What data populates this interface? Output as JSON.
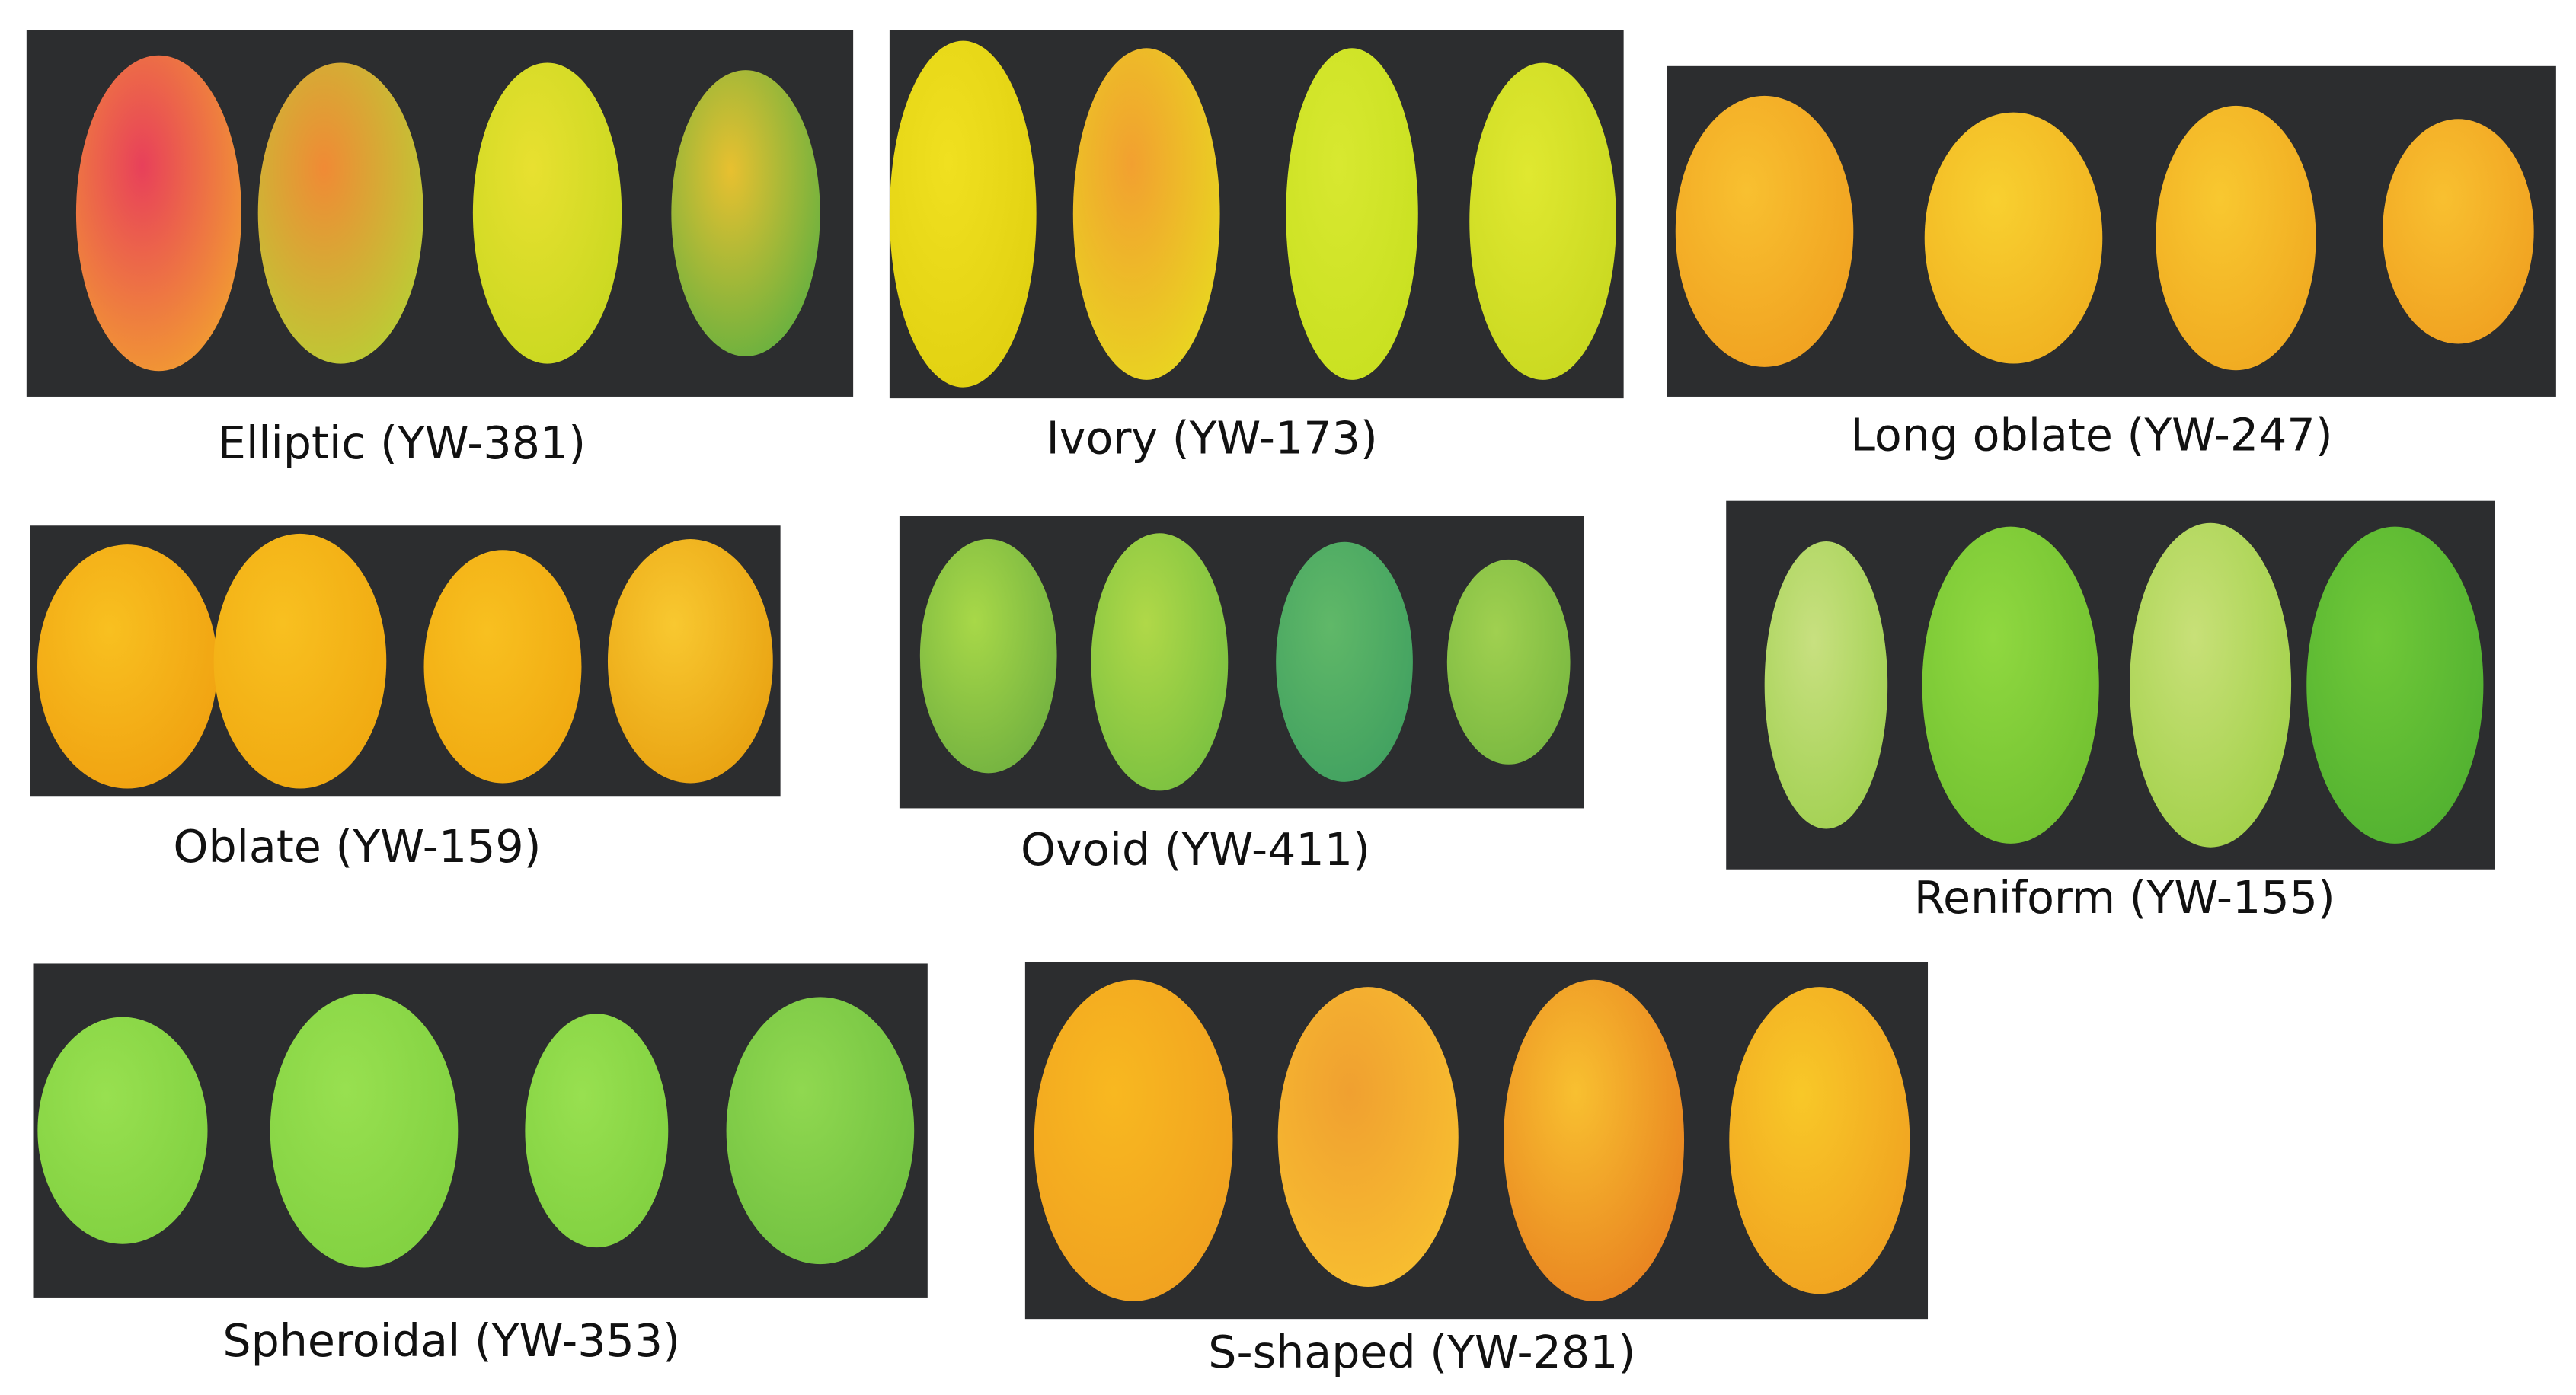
{
  "panels": [
    {
      "label": "Elliptic (YW-381)"
    },
    {
      "label": "Ivory (YW-173)"
    },
    {
      "label": "Long oblate (YW-247)"
    },
    {
      "label": "Oblate (YW-159)"
    },
    {
      "label": "Ovoid (YW-411)"
    },
    {
      "label": "Reniform (YW-155)"
    },
    {
      "label": "Spheroidal (YW-353)"
    },
    {
      "label": "S-shaped (YW-281)"
    }
  ]
}
